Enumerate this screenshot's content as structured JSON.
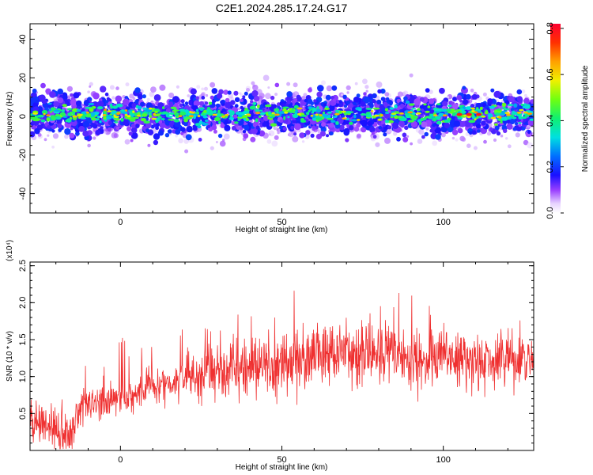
{
  "title": "C2E1.2024.285.17.24.G17",
  "chart_data": [
    {
      "type": "heatmap",
      "xlabel": "Height of straight line (km)",
      "ylabel": "Frequency (Hz)",
      "xlim": [
        -28,
        128
      ],
      "ylim": [
        -50,
        48
      ],
      "xticks": [
        0,
        50,
        100
      ],
      "yticks": [
        -40,
        -20,
        0,
        20,
        40
      ],
      "colorbar": {
        "label": "Normalized spectral amplitude",
        "range": [
          0.0,
          0.82
        ],
        "ticks": [
          "0.0",
          "0.2",
          "0.4",
          "0.6",
          "0.8"
        ]
      },
      "band": {
        "center_hz": 1,
        "core_halfwidth_hz": 5,
        "outer_halfwidth_hz": 12,
        "peak_amplitude": 0.78,
        "peak_heights_km": [
          105,
          108,
          111
        ]
      }
    },
    {
      "type": "line",
      "xlabel": "Height of straight line (km)",
      "ylabel": "SNR (10 * v/v)",
      "scale_label": "(x10⁴)",
      "color": "#ef3030",
      "xlim": [
        -28,
        128
      ],
      "ylim": [
        0,
        2.55
      ],
      "xticks": [
        0,
        50,
        100
      ],
      "yticks": [
        "0.5",
        "1.0",
        "1.5",
        "2.0",
        "2.5"
      ],
      "x": [
        -28,
        -20,
        -15,
        -12,
        -5,
        0,
        5,
        10,
        15,
        20,
        25,
        30,
        40,
        50,
        60,
        70,
        80,
        90,
        100,
        110,
        120,
        128
      ],
      "y": [
        0.45,
        0.3,
        0.2,
        0.6,
        0.65,
        0.7,
        0.75,
        0.9,
        0.9,
        1.0,
        1.05,
        1.1,
        1.15,
        1.15,
        1.3,
        1.35,
        1.3,
        1.25,
        1.25,
        1.2,
        1.2,
        1.15
      ]
    }
  ]
}
